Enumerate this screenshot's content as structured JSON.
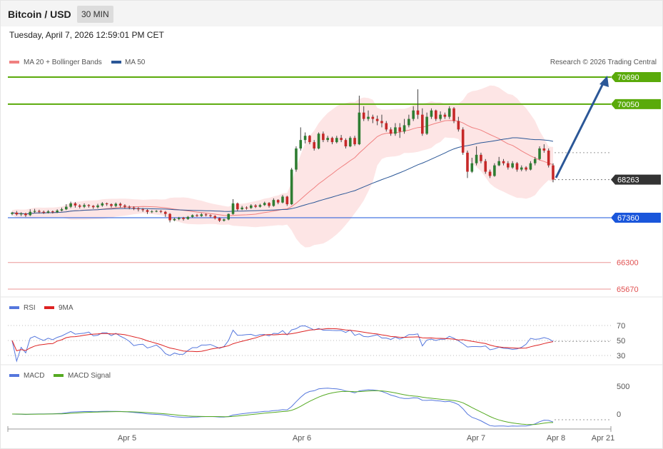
{
  "header": {
    "title": "Bitcoin / USD",
    "timeframe": "30 MIN"
  },
  "datetime": "Tuesday, April 7, 2026 12:59:01 PM CET",
  "chart_data": [
    {
      "type": "candlestick",
      "legend": [
        {
          "name": "MA 20 + Bollinger Bands",
          "color": "#f08080"
        },
        {
          "name": "MA 50",
          "color": "#2b5797"
        }
      ],
      "credit": "Research © 2026 Trading Central",
      "ylim": [
        65400,
        71000
      ],
      "levels": [
        {
          "value": 70690,
          "label": "70690",
          "color": "#5aaa0a",
          "kind": "resistance"
        },
        {
          "value": 70050,
          "label": "70050",
          "color": "#5aaa0a",
          "kind": "resistance"
        },
        {
          "value": 68263,
          "label": "68263",
          "color": "#333333",
          "kind": "last-price"
        },
        {
          "value": 67360,
          "label": "67360",
          "color": "#1a56db",
          "kind": "pivot"
        },
        {
          "value": 66300,
          "label": "66300",
          "color": "#e05050",
          "kind": "support"
        },
        {
          "value": 65670,
          "label": "65670",
          "color": "#e05050",
          "kind": "support"
        }
      ],
      "candles": [
        [
          67450,
          67480,
          67420,
          67500
        ],
        [
          67480,
          67440,
          67410,
          67520
        ],
        [
          67440,
          67460,
          67400,
          67490
        ],
        [
          67460,
          67420,
          67380,
          67480
        ],
        [
          67420,
          67500,
          67400,
          67560
        ],
        [
          67500,
          67520,
          67470,
          67570
        ],
        [
          67520,
          67500,
          67460,
          67550
        ],
        [
          67500,
          67480,
          67450,
          67530
        ],
        [
          67480,
          67510,
          67460,
          67540
        ],
        [
          67510,
          67490,
          67460,
          67530
        ],
        [
          67490,
          67530,
          67470,
          67560
        ],
        [
          67530,
          67560,
          67510,
          67600
        ],
        [
          67560,
          67620,
          67540,
          67680
        ],
        [
          67620,
          67700,
          67590,
          67740
        ],
        [
          67700,
          67650,
          67600,
          67730
        ],
        [
          67650,
          67620,
          67580,
          67680
        ],
        [
          67620,
          67660,
          67590,
          67700
        ],
        [
          67660,
          67640,
          67600,
          67680
        ],
        [
          67640,
          67610,
          67570,
          67660
        ],
        [
          67610,
          67650,
          67580,
          67690
        ],
        [
          67650,
          67700,
          67620,
          67730
        ],
        [
          67700,
          67680,
          67640,
          67720
        ],
        [
          67680,
          67640,
          67600,
          67700
        ],
        [
          67640,
          67690,
          67610,
          67720
        ],
        [
          67690,
          67650,
          67600,
          67720
        ],
        [
          67650,
          67620,
          67580,
          67680
        ],
        [
          67620,
          67600,
          67560,
          67650
        ],
        [
          67600,
          67580,
          67540,
          67630
        ],
        [
          67580,
          67560,
          67510,
          67610
        ],
        [
          67560,
          67540,
          67500,
          67590
        ],
        [
          67540,
          67500,
          67450,
          67560
        ],
        [
          67500,
          67510,
          67470,
          67540
        ],
        [
          67510,
          67520,
          67490,
          67540
        ],
        [
          67520,
          67500,
          67470,
          67540
        ],
        [
          67500,
          67450,
          67380,
          67520
        ],
        [
          67450,
          67300,
          67250,
          67470
        ],
        [
          67300,
          67330,
          67280,
          67360
        ],
        [
          67330,
          67360,
          67300,
          67380
        ],
        [
          67360,
          67330,
          67290,
          67380
        ],
        [
          67330,
          67380,
          67310,
          67400
        ],
        [
          67380,
          67420,
          67360,
          67440
        ],
        [
          67420,
          67400,
          67380,
          67450
        ],
        [
          67400,
          67440,
          67380,
          67470
        ],
        [
          67440,
          67420,
          67390,
          67460
        ],
        [
          67420,
          67400,
          67370,
          67440
        ],
        [
          67400,
          67350,
          67320,
          67420
        ],
        [
          67350,
          67290,
          67260,
          67370
        ],
        [
          67290,
          67320,
          67270,
          67340
        ],
        [
          67320,
          67450,
          67300,
          67460
        ],
        [
          67450,
          67700,
          67430,
          67800
        ],
        [
          67700,
          67560,
          67520,
          67720
        ],
        [
          67560,
          67600,
          67540,
          67640
        ],
        [
          67600,
          67590,
          67550,
          67630
        ],
        [
          67590,
          67650,
          67570,
          67680
        ],
        [
          67650,
          67620,
          67590,
          67680
        ],
        [
          67620,
          67660,
          67600,
          67690
        ],
        [
          67660,
          67710,
          67640,
          67740
        ],
        [
          67710,
          67640,
          67600,
          67730
        ],
        [
          67640,
          67780,
          67620,
          67820
        ],
        [
          67780,
          67720,
          67680,
          67800
        ],
        [
          67720,
          67860,
          67700,
          67900
        ],
        [
          67860,
          67680,
          67640,
          67880
        ],
        [
          67680,
          68500,
          67660,
          68540
        ],
        [
          68500,
          69000,
          68450,
          69050
        ],
        [
          69000,
          69200,
          68950,
          69500
        ],
        [
          69200,
          69300,
          69120,
          69380
        ],
        [
          69300,
          69150,
          69100,
          69320
        ],
        [
          69150,
          69000,
          68950,
          69200
        ],
        [
          69000,
          69350,
          68980,
          69380
        ],
        [
          69350,
          69200,
          69150,
          69400
        ],
        [
          69200,
          69250,
          69150,
          69300
        ],
        [
          69250,
          69150,
          69100,
          69280
        ],
        [
          69150,
          69250,
          69120,
          69300
        ],
        [
          69250,
          69200,
          69150,
          69320
        ],
        [
          69200,
          69050,
          69000,
          69240
        ],
        [
          69050,
          69250,
          69030,
          69290
        ],
        [
          69250,
          69100,
          69060,
          69300
        ],
        [
          69100,
          69850,
          69080,
          70250
        ],
        [
          69850,
          69700,
          69650,
          70000
        ],
        [
          69700,
          69750,
          69650,
          69900
        ],
        [
          69750,
          69700,
          69600,
          69800
        ],
        [
          69700,
          69650,
          69550,
          69780
        ],
        [
          69650,
          69600,
          69500,
          69800
        ],
        [
          69600,
          69450,
          69400,
          69650
        ],
        [
          69450,
          69350,
          69300,
          69500
        ],
        [
          69350,
          69500,
          69300,
          69600
        ],
        [
          69500,
          69400,
          69250,
          69600
        ],
        [
          69400,
          69550,
          69350,
          69700
        ],
        [
          69550,
          69700,
          69500,
          69800
        ],
        [
          69700,
          69900,
          69650,
          70000
        ],
        [
          69900,
          69800,
          69700,
          70400
        ],
        [
          69800,
          69350,
          69300,
          69950
        ],
        [
          69350,
          69750,
          69320,
          69850
        ],
        [
          69750,
          69900,
          69700,
          69950
        ],
        [
          69900,
          69700,
          69650,
          69920
        ],
        [
          69700,
          69800,
          69650,
          69880
        ],
        [
          69800,
          69750,
          69700,
          69850
        ],
        [
          69750,
          69950,
          69700,
          70000
        ],
        [
          69950,
          69650,
          69600,
          69980
        ],
        [
          69650,
          69450,
          69400,
          69750
        ],
        [
          69450,
          68900,
          68850,
          69500
        ],
        [
          68900,
          68450,
          68300,
          68950
        ],
        [
          68450,
          68650,
          68420,
          68780
        ],
        [
          68650,
          68850,
          68600,
          69050
        ],
        [
          68850,
          68700,
          68650,
          68900
        ],
        [
          68700,
          68450,
          68400,
          68750
        ],
        [
          68450,
          68350,
          68300,
          68500
        ],
        [
          68350,
          68600,
          68330,
          68650
        ],
        [
          68600,
          68700,
          68580,
          68800
        ],
        [
          68700,
          68650,
          68600,
          68750
        ],
        [
          68650,
          68550,
          68500,
          68700
        ],
        [
          68550,
          68650,
          68520,
          68700
        ],
        [
          68650,
          68500,
          68450,
          68680
        ],
        [
          68500,
          68550,
          68460,
          68600
        ],
        [
          68550,
          68500,
          68460,
          68580
        ],
        [
          68500,
          68650,
          68480,
          68700
        ],
        [
          68650,
          68750,
          68600,
          68800
        ],
        [
          68750,
          69000,
          68720,
          69050
        ],
        [
          69000,
          68950,
          68900,
          69100
        ],
        [
          68950,
          68600,
          68550,
          69000
        ],
        [
          68600,
          68263,
          68200,
          68650
        ]
      ]
    },
    {
      "type": "line",
      "series": [
        {
          "name": "RSI",
          "color": "#5577dd"
        },
        {
          "name": "9MA",
          "color": "#dd2222"
        }
      ],
      "yticks": [
        70,
        50,
        30
      ]
    },
    {
      "type": "line",
      "series": [
        {
          "name": "MACD",
          "color": "#5577dd"
        },
        {
          "name": "MACD Signal",
          "color": "#55aa22"
        }
      ],
      "yticks": [
        500,
        0
      ]
    }
  ],
  "xaxis": {
    "ticks": [
      "Apr 5",
      "Apr 6",
      "Apr 7",
      "Apr 8",
      "Apr 21"
    ]
  }
}
